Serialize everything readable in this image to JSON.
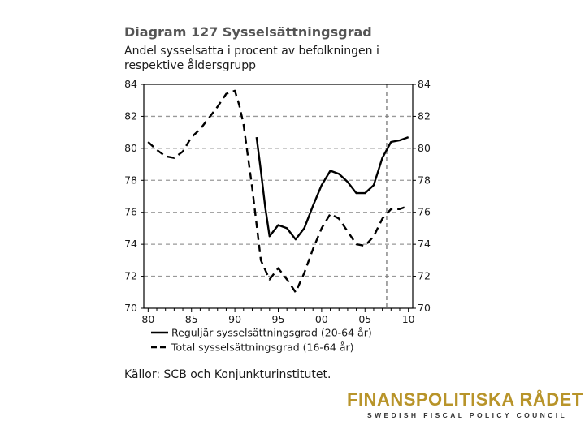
{
  "chart_data": {
    "type": "line",
    "title": "Diagram 127 Sysselsättningsgrad",
    "subtitle": "Andel sysselsatta i procent av befolkningen i respektive åldersgrupp",
    "xlim": [
      1979.5,
      2010.5
    ],
    "ylim": [
      70,
      84
    ],
    "x_ticks": [
      1980,
      1985,
      1990,
      1995,
      2000,
      2005,
      2010
    ],
    "x_tick_labels": [
      "80",
      "85",
      "90",
      "95",
      "00",
      "05",
      "10"
    ],
    "y_ticks": [
      70,
      72,
      74,
      76,
      78,
      80,
      82,
      84
    ],
    "y_tick_labels": [
      "70",
      "72",
      "74",
      "76",
      "78",
      "80",
      "82",
      "84"
    ],
    "grid": "horizontal dashed",
    "forecast_marker_x": 2007.5,
    "legend_position": "bottom",
    "series": [
      {
        "name": "Reguljär sysselsättningsgrad (20-64 år)",
        "style": "solid",
        "x": [
          1992.5,
          1993,
          1993.5,
          1994,
          1995,
          1996,
          1997,
          1998,
          1999,
          2000,
          2001,
          2002,
          2003,
          2004,
          2005,
          2006,
          2007,
          2008,
          2009,
          2010
        ],
        "y": [
          80.7,
          78.6,
          76.3,
          74.5,
          75.2,
          75.0,
          74.3,
          75.0,
          76.4,
          77.7,
          78.6,
          78.4,
          77.9,
          77.2,
          77.2,
          77.7,
          79.4,
          80.4,
          80.5,
          80.7
        ]
      },
      {
        "name": "Total sysselsättningsgrad (16-64 år)",
        "style": "dashed",
        "x": [
          1980,
          1981,
          1982,
          1983,
          1984,
          1985,
          1986,
          1987,
          1988,
          1989,
          1990,
          1990.5,
          1991,
          1992,
          1993,
          1994,
          1995,
          1996,
          1997,
          1998,
          1999,
          2000,
          2001,
          2002,
          2003,
          2004,
          2005,
          2006,
          2007,
          2008,
          2009,
          2010
        ],
        "y": [
          80.4,
          79.9,
          79.5,
          79.4,
          79.8,
          80.7,
          81.2,
          81.9,
          82.6,
          83.4,
          83.6,
          82.7,
          81.5,
          77.5,
          73.0,
          71.8,
          72.5,
          71.8,
          71.0,
          72.2,
          73.7,
          75.0,
          75.9,
          75.6,
          74.8,
          74.0,
          73.9,
          74.5,
          75.6,
          76.2,
          76.2,
          76.4
        ]
      }
    ],
    "source": "Källor: SCB och Konjunkturinstitutet."
  },
  "logo": {
    "name": "FINANSPOLITISKA RÅDET",
    "tagline": "SWEDISH FISCAL POLICY COUNCIL"
  },
  "colors": {
    "title": "#555555",
    "line": "#000000",
    "grid": "#999999",
    "logo_gold": "#b8942a"
  }
}
